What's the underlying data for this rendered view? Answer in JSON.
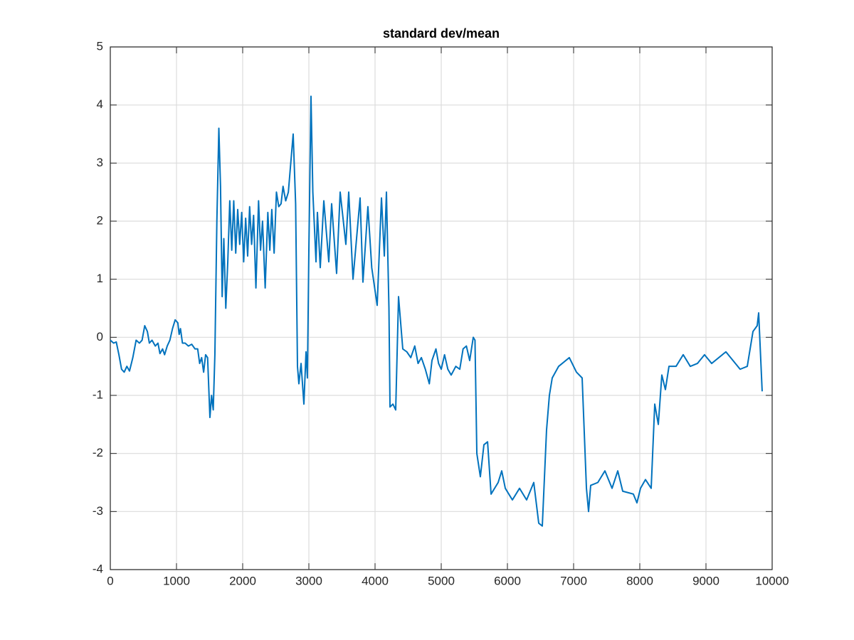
{
  "chart_data": {
    "type": "line",
    "title": "standard dev/mean",
    "x": [
      0,
      50,
      90,
      130,
      170,
      210,
      250,
      290,
      340,
      390,
      440,
      480,
      520,
      560,
      590,
      630,
      680,
      720,
      750,
      790,
      820,
      860,
      900,
      940,
      980,
      1020,
      1040,
      1060,
      1090,
      1130,
      1180,
      1230,
      1280,
      1320,
      1350,
      1380,
      1410,
      1440,
      1470,
      1505,
      1530,
      1555,
      1580,
      1610,
      1640,
      1665,
      1690,
      1715,
      1745,
      1775,
      1805,
      1835,
      1865,
      1895,
      1925,
      1955,
      1985,
      2015,
      2045,
      2075,
      2105,
      2135,
      2165,
      2200,
      2240,
      2270,
      2300,
      2340,
      2380,
      2410,
      2440,
      2475,
      2510,
      2545,
      2580,
      2610,
      2650,
      2690,
      2763,
      2800,
      2828,
      2849,
      2882,
      2925,
      2957,
      2978,
      3000,
      3032,
      3060,
      3108,
      3129,
      3172,
      3226,
      3301,
      3344,
      3419,
      3473,
      3559,
      3602,
      3667,
      3774,
      3817,
      3892,
      3950,
      4032,
      4097,
      4140,
      4172,
      4210,
      4226,
      4270,
      4312,
      4355,
      4419,
      4480,
      4540,
      4600,
      4650,
      4700,
      4760,
      4820,
      4860,
      4920,
      4960,
      5000,
      5050,
      5100,
      5150,
      5220,
      5280,
      5330,
      5380,
      5430,
      5484,
      5510,
      5538,
      5591,
      5645,
      5700,
      5753,
      5860,
      5914,
      5968,
      6075,
      6183,
      6290,
      6398,
      6473,
      6527,
      6591,
      6634,
      6677,
      6774,
      6935,
      7043,
      7129,
      7194,
      7226,
      7258,
      7366,
      7473,
      7581,
      7667,
      7742,
      7903,
      7957,
      8011,
      8086,
      8172,
      8226,
      8280,
      8333,
      8387,
      8441,
      8548,
      8656,
      8763,
      8871,
      8978,
      9086,
      9301,
      9516,
      9624,
      9710,
      9774,
      9796,
      9849
    ],
    "series": [
      {
        "color": "#0072bd",
        "values": [
          -0.05,
          -0.1,
          -0.08,
          -0.3,
          -0.55,
          -0.6,
          -0.5,
          -0.58,
          -0.35,
          -0.05,
          -0.1,
          -0.05,
          0.2,
          0.1,
          -0.1,
          -0.05,
          -0.15,
          -0.1,
          -0.28,
          -0.2,
          -0.3,
          -0.15,
          -0.05,
          0.15,
          0.3,
          0.25,
          0.05,
          0.15,
          -0.1,
          -0.1,
          -0.15,
          -0.12,
          -0.2,
          -0.2,
          -0.45,
          -0.35,
          -0.6,
          -0.3,
          -0.35,
          -1.38,
          -1.0,
          -1.25,
          -0.3,
          2.0,
          3.6,
          2.6,
          0.7,
          1.7,
          0.5,
          1.3,
          2.35,
          1.5,
          2.35,
          1.45,
          2.2,
          1.6,
          2.15,
          1.3,
          2.05,
          1.4,
          2.25,
          1.6,
          2.1,
          0.85,
          2.35,
          1.5,
          2.0,
          0.85,
          2.15,
          1.5,
          2.2,
          1.45,
          2.5,
          2.25,
          2.3,
          2.6,
          2.35,
          2.5,
          3.5,
          2.3,
          -0.5,
          -0.8,
          -0.45,
          -1.15,
          -0.25,
          -0.7,
          1.5,
          4.15,
          2.5,
          1.3,
          2.15,
          1.2,
          2.35,
          1.3,
          2.3,
          1.1,
          2.5,
          1.6,
          2.5,
          1.0,
          2.4,
          0.95,
          2.25,
          1.2,
          0.55,
          2.4,
          1.4,
          2.5,
          0.5,
          -1.2,
          -1.15,
          -1.25,
          0.7,
          -0.2,
          -0.25,
          -0.35,
          -0.15,
          -0.45,
          -0.35,
          -0.55,
          -0.8,
          -0.4,
          -0.2,
          -0.45,
          -0.55,
          -0.3,
          -0.55,
          -0.65,
          -0.5,
          -0.55,
          -0.2,
          -0.15,
          -0.4,
          0.0,
          -0.05,
          -2.0,
          -2.4,
          -1.85,
          -1.8,
          -2.7,
          -2.5,
          -2.3,
          -2.6,
          -2.8,
          -2.6,
          -2.8,
          -2.5,
          -3.2,
          -3.25,
          -1.6,
          -1.0,
          -0.7,
          -0.5,
          -0.35,
          -0.6,
          -0.7,
          -2.6,
          -3.0,
          -2.55,
          -2.5,
          -2.3,
          -2.6,
          -2.3,
          -2.65,
          -2.7,
          -2.85,
          -2.6,
          -2.45,
          -2.6,
          -1.15,
          -1.5,
          -0.65,
          -0.9,
          -0.5,
          -0.5,
          -0.3,
          -0.5,
          -0.45,
          -0.3,
          -0.45,
          -0.25,
          -0.55,
          -0.5,
          0.1,
          0.2,
          0.42,
          -0.93
        ]
      }
    ],
    "xlim": [
      0,
      10000
    ],
    "xticks": [
      0,
      1000,
      2000,
      3000,
      4000,
      5000,
      6000,
      7000,
      8000,
      9000,
      10000
    ],
    "ylim": [
      -4,
      5
    ],
    "yticks": [
      -4,
      -3,
      -2,
      -1,
      0,
      1,
      2,
      3,
      4,
      5
    ],
    "grid": true
  }
}
